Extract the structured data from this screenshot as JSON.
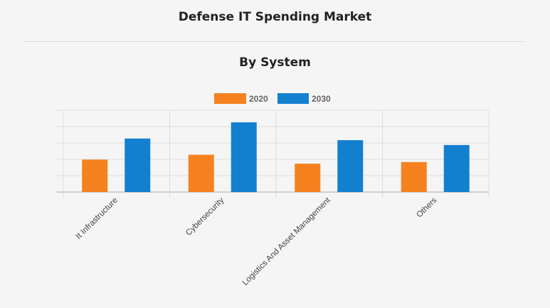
{
  "header": {
    "title": "Defense IT Spending Market",
    "subtitle": "By System"
  },
  "colors": {
    "series_2020": "#f5821f",
    "series_2030": "#1380cf",
    "grid": "#dddddd",
    "axis": "#bbbbbb"
  },
  "chart_data": {
    "type": "bar",
    "title": "",
    "xlabel": "",
    "ylabel": "",
    "ylim": [
      0,
      5
    ],
    "grid": true,
    "legend_position": "top-center",
    "categories": [
      "It Infrastructure",
      "Cybersecurity",
      "Logistics And Asset Management",
      "Others"
    ],
    "series": [
      {
        "name": "2020",
        "color": "#f5821f",
        "values": [
          2.0,
          2.3,
          1.75,
          1.85
        ]
      },
      {
        "name": "2030",
        "color": "#1380cf",
        "values": [
          3.3,
          4.3,
          3.2,
          2.9
        ]
      }
    ]
  }
}
